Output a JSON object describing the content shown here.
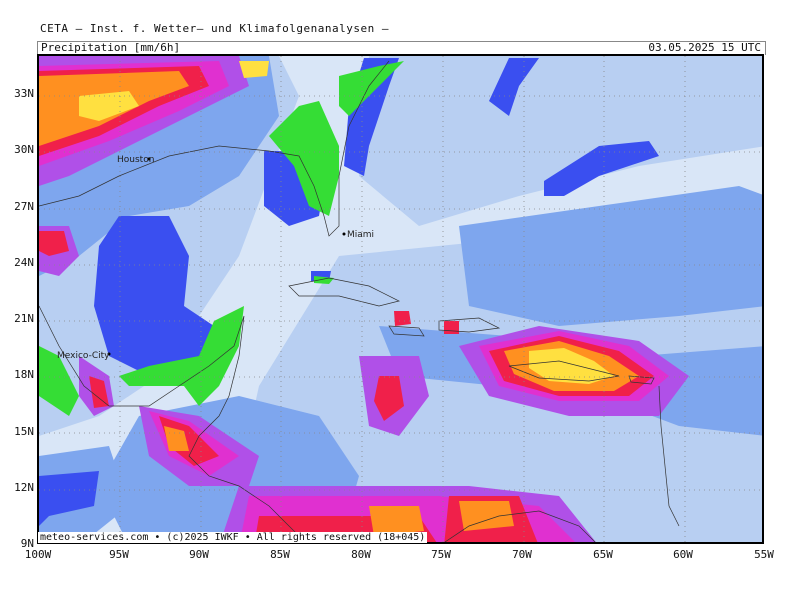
{
  "header": {
    "title": "CETA – Inst. f. Wetter– und Klimafolgenanalysen –",
    "parameter": "Precipitation [mm/6h]",
    "valid_time": "03.05.2025 15 UTC"
  },
  "axes": {
    "lat_labels": [
      "33N",
      "30N",
      "27N",
      "24N",
      "21N",
      "18N",
      "15N",
      "12N",
      "9N"
    ],
    "lon_labels": [
      "100W",
      "95W",
      "90W",
      "85W",
      "80W",
      "75W",
      "70W",
      "65W",
      "60W",
      "55W"
    ]
  },
  "cities": {
    "houston": "Houston",
    "miami": "Miami",
    "mexico_city": "Mexico-City"
  },
  "footer": {
    "credit": "meteo-services.com • (c)2025 IWKF • All rights reserved (18+045)"
  },
  "colors": {
    "background_light": "#d9e6f7",
    "light_blue": "#b8cff2",
    "mid_blue": "#7ea6ee",
    "dark_blue": "#3a4ff0",
    "green": "#35dd35",
    "purple": "#b050e8",
    "magenta": "#e030d0",
    "red": "#f0204a",
    "orange": "#ff9020",
    "yellow": "#ffe040"
  }
}
